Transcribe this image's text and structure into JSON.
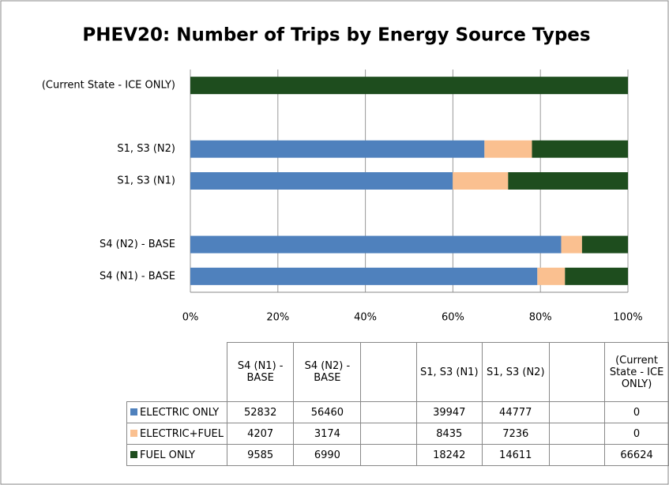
{
  "chart_data": {
    "type": "bar",
    "orientation": "horizontal",
    "stacked": "percent",
    "title": "PHEV20: Number of Trips by Energy Source Types",
    "categories": [
      "S4 (N1) - BASE",
      "S4 (N2) - BASE",
      null,
      "S1, S3 (N1)",
      "S1, S3 (N2)",
      null,
      "(Current State - ICE ONLY)"
    ],
    "series": [
      {
        "name": "ELECTRIC ONLY",
        "color": "#4f81bd",
        "values": [
          52832,
          56460,
          null,
          39947,
          44777,
          null,
          0
        ]
      },
      {
        "name": "ELECTRIC+FUEL",
        "color": "#fac090",
        "values": [
          4207,
          3174,
          null,
          8435,
          7236,
          null,
          0
        ]
      },
      {
        "name": "FUEL ONLY",
        "color": "#1e4d1e",
        "values": [
          9585,
          6990,
          null,
          18242,
          14611,
          null,
          66624
        ]
      }
    ],
    "xlim": [
      0,
      100
    ],
    "xticks": [
      {
        "value": 0,
        "label": "0%"
      },
      {
        "value": 20,
        "label": "20%"
      },
      {
        "value": 40,
        "label": "40%"
      },
      {
        "value": 60,
        "label": "60%"
      },
      {
        "value": 80,
        "label": "80%"
      },
      {
        "value": 100,
        "label": "100%"
      }
    ],
    "grid": true,
    "legend": "table"
  }
}
